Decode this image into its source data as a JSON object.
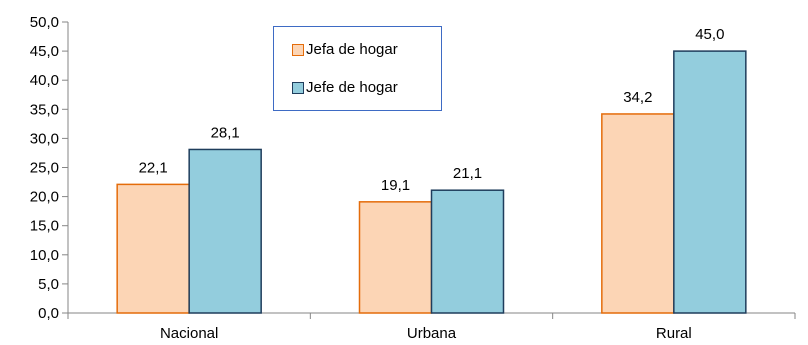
{
  "chart_data": {
    "type": "bar",
    "categories": [
      "Nacional",
      "Urbana",
      "Rural"
    ],
    "series": [
      {
        "name": "Jefa de hogar",
        "values": [
          22.1,
          19.1,
          34.2
        ],
        "fill": "#fcd5b5",
        "stroke": "#e46c0a"
      },
      {
        "name": "Jefe de hogar",
        "values": [
          28.1,
          21.1,
          45.0
        ],
        "fill": "#93cddd",
        "stroke": "#1f3d5c"
      }
    ],
    "data_labels": [
      [
        "22,1",
        "19,1",
        "34,2"
      ],
      [
        "28,1",
        "21,1",
        "45,0"
      ]
    ],
    "y_ticks": [
      "0,0",
      "5,0",
      "10,0",
      "15,0",
      "20,0",
      "25,0",
      "30,0",
      "35,0",
      "40,0",
      "45,0",
      "50,0"
    ],
    "ylim": [
      0,
      50
    ],
    "grid": false,
    "legend_position": "top-center",
    "axis_color": "#868686",
    "legend_border_color": "#3e6bc4"
  }
}
